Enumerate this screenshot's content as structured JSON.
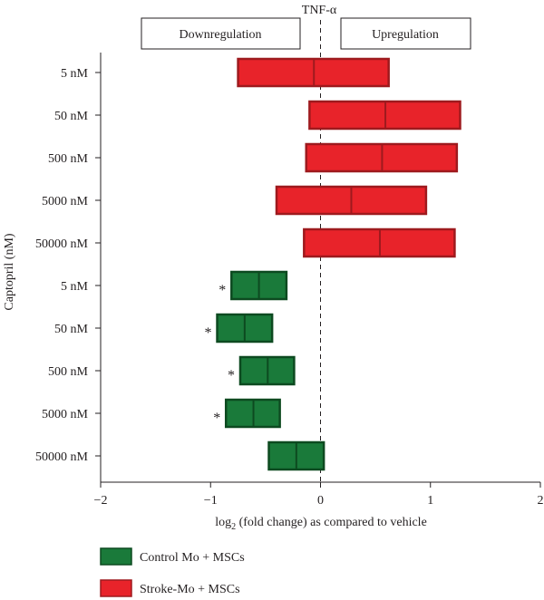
{
  "chart_data": {
    "type": "floating-bar",
    "title": "TNF-α",
    "ylabel": "Captopril (nM)",
    "xlabel_main": "log",
    "xlabel_sub": "2",
    "xlabel_rest": " (fold change) as compared to vehicle",
    "xlim": [
      -2,
      2
    ],
    "xticks": [
      -2,
      -1,
      0,
      1,
      2
    ],
    "xtick_labels": [
      "−2",
      "−1",
      "0",
      "1",
      "2"
    ],
    "reference_line": 0,
    "annotations": {
      "left": "Downregulation",
      "right": "Upregulation"
    },
    "legend": [
      {
        "label": "Control Mo + MSCs",
        "color": "#1a7a3a"
      },
      {
        "label": "Stroke-Mo + MSCs",
        "color": "#e8232a"
      }
    ],
    "categories": [
      "5 nM",
      "50 nM",
      "500 nM",
      "5000 nM",
      "50000 nM",
      "5 nM",
      "50 nM",
      "500 nM",
      "5000 nM",
      "50000 nM"
    ],
    "series": [
      {
        "name": "Stroke-Mo + MSCs",
        "color": "#e8232a",
        "stroke": "#9e1a1e",
        "rows": [
          0,
          1,
          2,
          3,
          4
        ],
        "low": [
          -0.75,
          -0.1,
          -0.13,
          -0.4,
          -0.15
        ],
        "mid": [
          -0.06,
          0.59,
          0.56,
          0.28,
          0.54
        ],
        "high": [
          0.62,
          1.27,
          1.24,
          0.96,
          1.22
        ],
        "significance": [
          "",
          "",
          "",
          "",
          ""
        ]
      },
      {
        "name": "Control Mo + MSCs",
        "color": "#1a7a3a",
        "stroke": "#0d4a20",
        "rows": [
          5,
          6,
          7,
          8,
          9
        ],
        "low": [
          -0.81,
          -0.94,
          -0.73,
          -0.86,
          -0.47
        ],
        "mid": [
          -0.56,
          -0.69,
          -0.48,
          -0.61,
          -0.22
        ],
        "high": [
          -0.31,
          -0.44,
          -0.24,
          -0.37,
          0.03
        ],
        "significance": [
          "*",
          "*",
          "*",
          "*",
          ""
        ]
      }
    ]
  }
}
